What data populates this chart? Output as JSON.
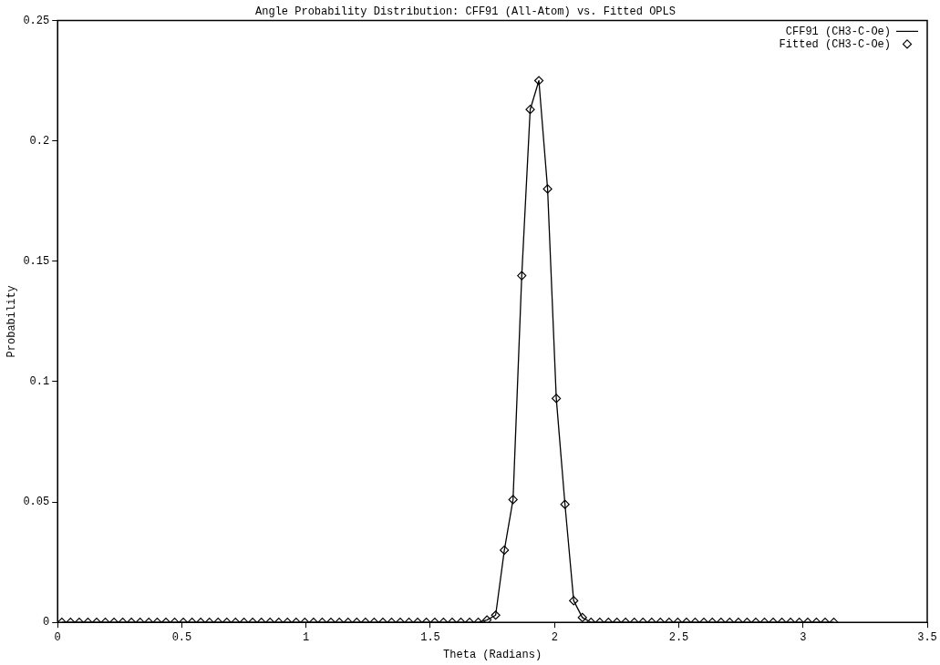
{
  "chart_data": {
    "type": "line",
    "title": "Angle Probability Distribution: CFF91 (All-Atom) vs. Fitted OPLS",
    "xlabel": "Theta (Radians)",
    "ylabel": "Probability",
    "x": [
      0.017,
      0.052,
      0.087,
      0.122,
      0.157,
      0.192,
      0.227,
      0.262,
      0.297,
      0.332,
      0.367,
      0.401,
      0.436,
      0.471,
      0.506,
      0.541,
      0.576,
      0.611,
      0.646,
      0.681,
      0.716,
      0.75,
      0.785,
      0.82,
      0.855,
      0.89,
      0.925,
      0.96,
      0.995,
      1.03,
      1.065,
      1.1,
      1.134,
      1.169,
      1.204,
      1.239,
      1.274,
      1.309,
      1.344,
      1.379,
      1.414,
      1.449,
      1.484,
      1.518,
      1.553,
      1.588,
      1.623,
      1.658,
      1.693,
      1.728,
      1.763,
      1.798,
      1.833,
      1.868,
      1.902,
      1.937,
      1.972,
      2.007,
      2.042,
      2.077,
      2.112,
      2.147,
      2.182,
      2.217,
      2.251,
      2.286,
      2.321,
      2.356,
      2.391,
      2.426,
      2.461,
      2.496,
      2.531,
      2.566,
      2.601,
      2.635,
      2.67,
      2.705,
      2.74,
      2.775,
      2.81,
      2.845,
      2.88,
      2.915,
      2.95,
      2.985,
      3.019,
      3.054,
      3.089,
      3.124
    ],
    "series": [
      {
        "name": "CFF91 (CH3-C-Oe)",
        "type": "line",
        "marker": "none",
        "line_style": "solid",
        "color": "#000000",
        "values": [
          0,
          0,
          0,
          0,
          0,
          0,
          0,
          0,
          0,
          0,
          0,
          0,
          0,
          0,
          0,
          0,
          0,
          0,
          0,
          0,
          0,
          0,
          0,
          0,
          0,
          0,
          0,
          0,
          0,
          0,
          0,
          0,
          0,
          0,
          0,
          0,
          0,
          0,
          0,
          0,
          0,
          0,
          0,
          0,
          0,
          0,
          0,
          0,
          0,
          0.001,
          0.003,
          0.03,
          0.051,
          0.144,
          0.213,
          0.225,
          0.18,
          0.093,
          0.049,
          0.009,
          0.002,
          0,
          0,
          0,
          0,
          0,
          0,
          0,
          0,
          0,
          0,
          0,
          0,
          0,
          0,
          0,
          0,
          0,
          0,
          0,
          0,
          0,
          0,
          0,
          0,
          0,
          0,
          0,
          0,
          0
        ]
      },
      {
        "name": "Fitted (CH3-C-Oe)",
        "type": "scatter",
        "marker": "diamond",
        "color": "#000000",
        "values": [
          0,
          0,
          0,
          0,
          0,
          0,
          0,
          0,
          0,
          0,
          0,
          0,
          0,
          0,
          0,
          0,
          0,
          0,
          0,
          0,
          0,
          0,
          0,
          0,
          0,
          0,
          0,
          0,
          0,
          0,
          0,
          0,
          0,
          0,
          0,
          0,
          0,
          0,
          0,
          0,
          0,
          0,
          0,
          0,
          0,
          0,
          0,
          0,
          0,
          0.001,
          0.003,
          0.03,
          0.051,
          0.144,
          0.213,
          0.225,
          0.18,
          0.093,
          0.049,
          0.009,
          0.002,
          0,
          0,
          0,
          0,
          0,
          0,
          0,
          0,
          0,
          0,
          0,
          0,
          0,
          0,
          0,
          0,
          0,
          0,
          0,
          0,
          0,
          0,
          0,
          0,
          0,
          0,
          0,
          0,
          0
        ]
      }
    ],
    "xlim": [
      0,
      3.5
    ],
    "xticks": [
      0,
      0.5,
      1,
      1.5,
      2,
      2.5,
      3,
      3.5
    ],
    "ylim": [
      0,
      0.25
    ],
    "yticks": [
      0,
      0.05,
      0.1,
      0.15,
      0.2,
      0.25
    ],
    "grid": false,
    "legend": "top right"
  }
}
